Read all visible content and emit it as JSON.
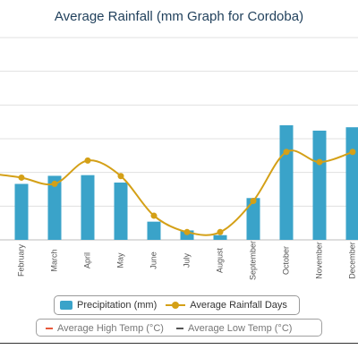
{
  "chart_data": {
    "type": "bar",
    "title": "Average Rainfall (mm Graph for Cordoba)",
    "categories": [
      "February",
      "March",
      "April",
      "May",
      "June",
      "July",
      "August",
      "September",
      "October",
      "November",
      "December"
    ],
    "series": [
      {
        "name": "Precipitation (mm)",
        "type": "bar",
        "color": "#3aa3c9",
        "values": [
          83,
          95,
          96,
          85,
          27,
          14,
          7,
          62,
          170,
          162,
          167
        ]
      },
      {
        "name": "Average Rainfall Days",
        "type": "line",
        "color": "#d4a017",
        "values": [
          8,
          7.2,
          10.2,
          8.2,
          3.1,
          1,
          1,
          5,
          11.3,
          10,
          11.3
        ]
      }
    ],
    "ylim_precip": [
      0,
      300
    ],
    "ylim_days": [
      0,
      26
    ],
    "grid": true,
    "legend_position": "bottom",
    "extra_legend_labels": [
      "Average High Temp (°C)",
      "Average Low Temp (°C)"
    ],
    "extra_legend_colors": [
      "#e8593c",
      "#555555"
    ]
  }
}
